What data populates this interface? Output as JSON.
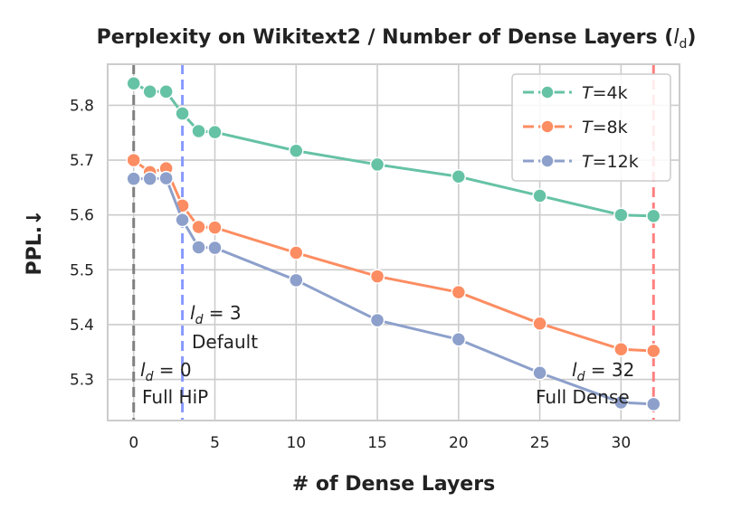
{
  "chart_data": {
    "type": "line",
    "title_main": "Perplexity on Wikitext2 / Number of Dense Layers (",
    "title_sym": "l",
    "title_sub": "d",
    "title_close": ")",
    "xlabel": "# of Dense Layers",
    "ylabel": "PPL.↓",
    "xlim": [
      -1.6,
      33.6
    ],
    "ylim": [
      5.225,
      5.875
    ],
    "x_ticks": [
      0,
      5,
      10,
      15,
      20,
      25,
      30
    ],
    "y_ticks": [
      5.3,
      5.4,
      5.5,
      5.6,
      5.7,
      5.8
    ],
    "x": [
      0,
      1,
      2,
      3,
      4,
      5,
      10,
      15,
      20,
      25,
      30,
      32
    ],
    "series": [
      {
        "name": "T=4k",
        "sym": "T",
        "rest": "=4k",
        "color": "#66c2a5",
        "values": [
          5.84,
          5.825,
          5.825,
          5.785,
          5.753,
          5.751,
          5.717,
          5.692,
          5.67,
          5.635,
          5.6,
          5.598
        ]
      },
      {
        "name": "T=8k",
        "sym": "T",
        "rest": "=8k",
        "color": "#fc8d62",
        "values": [
          5.7,
          5.678,
          5.685,
          5.617,
          5.578,
          5.577,
          5.531,
          5.488,
          5.459,
          5.402,
          5.355,
          5.352
        ]
      },
      {
        "name": "T=12k",
        "sym": "T",
        "rest": "=12k",
        "color": "#8da0cb",
        "values": [
          5.666,
          5.666,
          5.667,
          5.591,
          5.541,
          5.54,
          5.481,
          5.408,
          5.373,
          5.312,
          5.258,
          5.255
        ]
      }
    ],
    "vlines": [
      {
        "x": 0,
        "color": "#808080"
      },
      {
        "x": 3,
        "color": "#8899ff"
      },
      {
        "x": 32,
        "color": "#ff8080"
      }
    ],
    "annotations": [
      {
        "sym": "l",
        "sub": "d",
        "eq": " = 0",
        "label": "Full HiP"
      },
      {
        "sym": "l",
        "sub": "d",
        "eq": " = 3",
        "label": "Default"
      },
      {
        "sym": "l",
        "sub": "d",
        "eq": " = 32",
        "label": "Full Dense"
      }
    ],
    "legend_position": "top-right",
    "grid": true
  }
}
